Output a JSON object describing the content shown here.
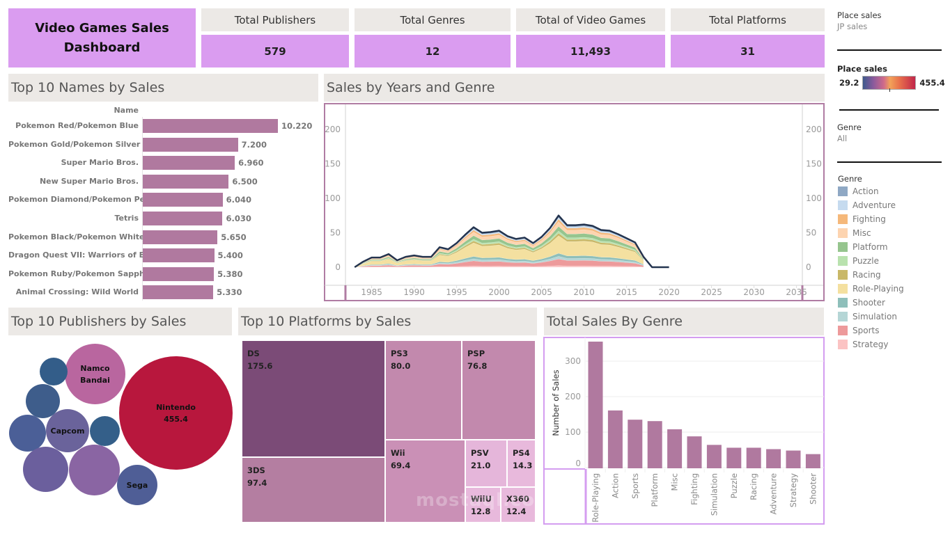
{
  "header": {
    "title": "Video Games Sales Dashboard"
  },
  "kpis": [
    {
      "label": "Total Publishers",
      "value": "579"
    },
    {
      "label": "Total Genres",
      "value": "12"
    },
    {
      "label": "Total  of Video Games",
      "value": "11,493"
    },
    {
      "label": "Total Platforms",
      "value": "31"
    }
  ],
  "filters": {
    "place_sales_label": "Place sales",
    "place_sales_value": "JP sales",
    "color_legend_label": "Place sales",
    "color_min": "29.2",
    "color_max": "455.4",
    "genre_label": "Genre",
    "genre_value": "All"
  },
  "genre_legend": {
    "title": "Genre",
    "items": [
      {
        "name": "Action",
        "color": "#8fa8c4"
      },
      {
        "name": "Adventure",
        "color": "#c6dbef"
      },
      {
        "name": "Fighting",
        "color": "#f5b87a"
      },
      {
        "name": "Misc",
        "color": "#fdd4b0"
      },
      {
        "name": "Platform",
        "color": "#96c58e"
      },
      {
        "name": "Puzzle",
        "color": "#b9e2ae"
      },
      {
        "name": "Racing",
        "color": "#c9b868"
      },
      {
        "name": "Role-Playing",
        "color": "#f4e0a0"
      },
      {
        "name": "Shooter",
        "color": "#8ebfba"
      },
      {
        "name": "Simulation",
        "color": "#b5d6d6"
      },
      {
        "name": "Sports",
        "color": "#ed9a9b"
      },
      {
        "name": "Strategy",
        "color": "#fbc3c3"
      }
    ]
  },
  "sections": {
    "names_title": "Top 10 Names by Sales",
    "years_title": "Sales by Years and Genre",
    "publishers_title": "Top 10 Publishers by Sales",
    "platforms_title": "Top 10 Platforms by Sales",
    "genre_title": "Total Sales By Genre"
  },
  "chart_data": [
    {
      "type": "bar",
      "orientation": "horizontal",
      "title": "Top 10 Names by Sales",
      "axis_header": "Name",
      "categories": [
        "Pokemon Red/Pokemon Blue",
        "Pokemon Gold/Pokemon Silver",
        "Super Mario Bros.",
        "New Super Mario Bros.",
        "Pokemon Diamond/Pokemon Pe..",
        "Tetris",
        "Pokemon Black/Pokemon White",
        "Dragon Quest VII: Warriors of E..",
        "Pokemon Ruby/Pokemon Sapph..",
        "Animal Crossing: Wild World"
      ],
      "values": [
        10.22,
        7.2,
        6.96,
        6.5,
        6.04,
        6.03,
        5.65,
        5.4,
        5.38,
        5.33
      ],
      "labels": [
        "10.220",
        "7.200",
        "6.960",
        "6.500",
        "6.040",
        "6.030",
        "5.650",
        "5.400",
        "5.380",
        "5.330"
      ],
      "color": "#b0799f"
    },
    {
      "type": "area",
      "stacked": true,
      "title": "Sales by Years and Genre",
      "x": [
        1983,
        1984,
        1985,
        1986,
        1987,
        1988,
        1989,
        1990,
        1991,
        1992,
        1993,
        1994,
        1995,
        1996,
        1997,
        1998,
        1999,
        2000,
        2001,
        2002,
        2003,
        2004,
        2005,
        2006,
        2007,
        2008,
        2009,
        2010,
        2011,
        2012,
        2013,
        2014,
        2015,
        2016,
        2017,
        2018,
        2019,
        2020
      ],
      "total": [
        0,
        8,
        14,
        14,
        19,
        10,
        15,
        17,
        15,
        15,
        29,
        26,
        35,
        47,
        58,
        50,
        51,
        53,
        45,
        41,
        43,
        35,
        44,
        57,
        75,
        61,
        61,
        62,
        60,
        54,
        53,
        48,
        42,
        36,
        15,
        0,
        0,
        0
      ],
      "xlim": [
        1982,
        2037
      ],
      "xticks": [
        "1985",
        "1990",
        "1995",
        "2000",
        "2005",
        "2010",
        "2015",
        "2020",
        "2025",
        "2030",
        "2035"
      ],
      "ylim": [
        0,
        230
      ],
      "yticks": [
        "0",
        "50",
        "100",
        "150",
        "200"
      ],
      "series_order": [
        "Strategy",
        "Sports",
        "Simulation",
        "Shooter",
        "Role-Playing",
        "Racing",
        "Puzzle",
        "Platform",
        "Misc",
        "Fighting",
        "Adventure",
        "Action"
      ],
      "genre_share_note": "stack approximated from legend genres",
      "line_color": "#24344f"
    },
    {
      "type": "bubble",
      "title": "Top 10 Publishers by Sales",
      "labeled": [
        {
          "name": "Nintendo",
          "value": 455.4,
          "label": "455.4"
        },
        {
          "name": "Namco Bandai"
        },
        {
          "name": "Capcom"
        },
        {
          "name": "Sega"
        }
      ],
      "unlabeled_count": 6,
      "color_scale": [
        "#3a5f8a",
        "#8c66a6",
        "#b83c6a",
        "#b8173d"
      ]
    },
    {
      "type": "treemap",
      "title": "Top 10 Platforms by Sales",
      "items": [
        {
          "name": "DS",
          "value": 175.6,
          "label": "175.6"
        },
        {
          "name": "3DS",
          "value": 97.4,
          "label": "97.4"
        },
        {
          "name": "PS3",
          "value": 80.0,
          "label": "80.0"
        },
        {
          "name": "PSP",
          "value": 76.8,
          "label": "76.8"
        },
        {
          "name": "Wii",
          "value": 69.4,
          "label": "69.4"
        },
        {
          "name": "PSV",
          "value": 21.0,
          "label": "21.0"
        },
        {
          "name": "PS4",
          "value": 14.3,
          "label": "14.3"
        },
        {
          "name": "WiiU",
          "value": 12.8,
          "label": "12.8"
        },
        {
          "name": "X360",
          "value": 12.4,
          "label": "12.4"
        }
      ]
    },
    {
      "type": "bar",
      "title": "Total Sales By Genre",
      "ylabel": "Number of Sales",
      "categories": [
        "Role-Playing",
        "Action",
        "Sports",
        "Platform",
        "Misc",
        "Fighting",
        "Simulation",
        "Puzzle",
        "Racing",
        "Adventure",
        "Strategy",
        "Shooter"
      ],
      "values": [
        355,
        161,
        135,
        131,
        108,
        88,
        64,
        56,
        56,
        52,
        48,
        38
      ],
      "ylim": [
        0,
        365
      ],
      "yticks": [
        "0",
        "100",
        "200",
        "300"
      ],
      "color": "#b0799f"
    }
  ],
  "watermark": {
    "text": "mostaql.com"
  }
}
